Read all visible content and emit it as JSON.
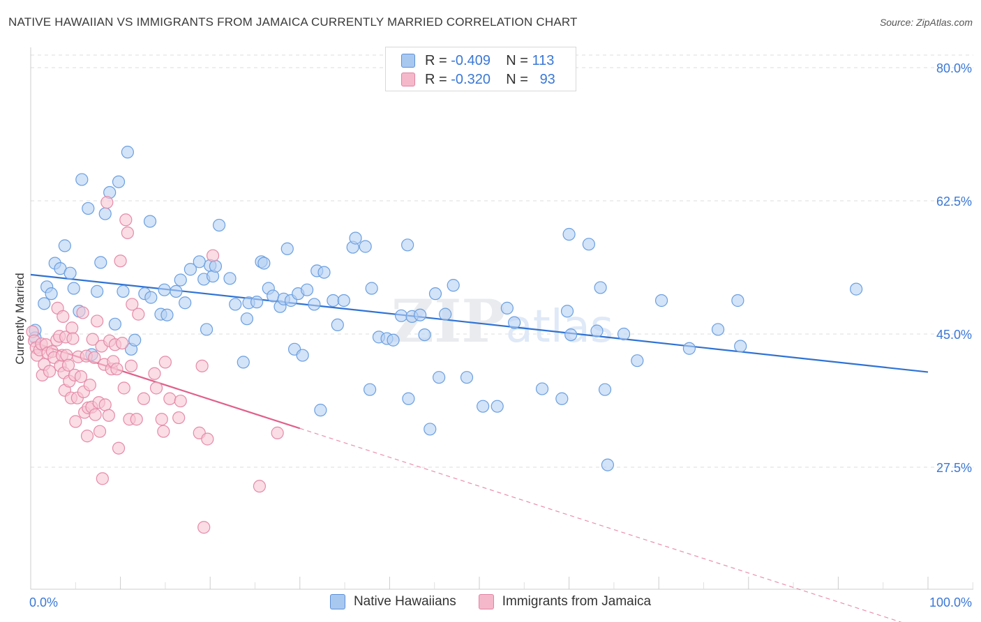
{
  "title": "NATIVE HAWAIIAN VS IMMIGRANTS FROM JAMAICA CURRENTLY MARRIED CORRELATION CHART",
  "source": "Source: ZipAtlas.com",
  "watermark": "ZIPatlas",
  "legend_top": {
    "rows": [
      {
        "r_label": "R =",
        "r_value": "-0.409",
        "n_label": "N =",
        "n_value": "113",
        "color": "#a9c8f0"
      },
      {
        "r_label": "R =",
        "r_value": "-0.320",
        "n_label": "N =",
        "n_value": "93",
        "color": "#f5b8cb"
      }
    ]
  },
  "bottom_legend": [
    {
      "label": "Native Hawaiians",
      "color": "#a9c8f0"
    },
    {
      "label": "Immigrants from Jamaica",
      "color": "#f5b8cb"
    }
  ],
  "chart_data": {
    "type": "scatter",
    "title": "NATIVE HAWAIIAN VS IMMIGRANTS FROM JAMAICA CURRENTLY MARRIED CORRELATION CHART",
    "ylabel": "Currently Married",
    "xlabel": "",
    "x_tick_labels": [
      "0.0%",
      "100.0%"
    ],
    "y_tick_labels": [
      "80.0%",
      "62.5%",
      "45.0%",
      "27.5%"
    ],
    "y_ticks": [
      80.0,
      62.5,
      45.0,
      27.5
    ],
    "xlim": [
      0,
      100
    ],
    "ylim": [
      12,
      82
    ],
    "grid": "horizontal dashed",
    "series": [
      {
        "name": "Native Hawaiians",
        "color": "#6a9fe0",
        "fill": "#b5d0f3",
        "trend": {
          "x": [
            0,
            100
          ],
          "y": [
            52.8,
            40.0
          ],
          "color": "#2f72d3"
        },
        "points": [
          [
            0.5,
            45.5
          ],
          [
            0.5,
            44.5
          ],
          [
            1.5,
            49
          ],
          [
            1.8,
            51.2
          ],
          [
            2.3,
            50.3
          ],
          [
            2.7,
            54.3
          ],
          [
            3.3,
            53.6
          ],
          [
            3.8,
            56.6
          ],
          [
            4.4,
            53
          ],
          [
            4.8,
            51
          ],
          [
            5.4,
            48
          ],
          [
            5.7,
            65.3
          ],
          [
            6.4,
            61.5
          ],
          [
            6.8,
            42.3
          ],
          [
            7.4,
            50.6
          ],
          [
            7.8,
            54.4
          ],
          [
            8.3,
            60.8
          ],
          [
            8.8,
            63.6
          ],
          [
            9.4,
            46.3
          ],
          [
            9.8,
            65
          ],
          [
            10.3,
            50.6
          ],
          [
            10.8,
            68.9
          ],
          [
            11.2,
            43
          ],
          [
            11.6,
            44.2
          ],
          [
            12.7,
            50.3
          ],
          [
            13.4,
            49.8
          ],
          [
            13.3,
            59.8
          ],
          [
            14.5,
            47.6
          ],
          [
            14.9,
            50.8
          ],
          [
            15.2,
            47.5
          ],
          [
            16.2,
            50.6
          ],
          [
            16.7,
            52.1
          ],
          [
            17.2,
            49.1
          ],
          [
            17.8,
            53.5
          ],
          [
            18.8,
            54.5
          ],
          [
            19.3,
            52.2
          ],
          [
            19.6,
            45.6
          ],
          [
            20.0,
            54.0
          ],
          [
            20.3,
            52.6
          ],
          [
            20.6,
            53.9
          ],
          [
            21.0,
            59.3
          ],
          [
            22.8,
            48.9
          ],
          [
            22.2,
            52.3
          ],
          [
            23.7,
            41.3
          ],
          [
            24.1,
            47.0
          ],
          [
            24.3,
            49.1
          ],
          [
            25.2,
            49.2
          ],
          [
            25.7,
            54.5
          ],
          [
            26.0,
            54.3
          ],
          [
            26.5,
            51.0
          ],
          [
            27.0,
            50.0
          ],
          [
            27.8,
            48.6
          ],
          [
            28.2,
            49.6
          ],
          [
            28.6,
            56.2
          ],
          [
            29.0,
            49.4
          ],
          [
            29.4,
            43.0
          ],
          [
            29.8,
            50.3
          ],
          [
            30.3,
            42.2
          ],
          [
            30.8,
            50.8
          ],
          [
            31.6,
            48.9
          ],
          [
            31.9,
            53.3
          ],
          [
            32.3,
            35.0
          ],
          [
            32.7,
            53.1
          ],
          [
            33.7,
            49.4
          ],
          [
            34.2,
            46.2
          ],
          [
            34.9,
            49.4
          ],
          [
            35.9,
            56.4
          ],
          [
            36.2,
            57.6
          ],
          [
            37.3,
            56.5
          ],
          [
            37.8,
            37.7
          ],
          [
            38.0,
            51.0
          ],
          [
            38.8,
            44.6
          ],
          [
            39.7,
            44.4
          ],
          [
            40.4,
            44.2
          ],
          [
            41.3,
            47.4
          ],
          [
            42.0,
            56.7
          ],
          [
            42.5,
            47.3
          ],
          [
            42.1,
            36.5
          ],
          [
            43.4,
            47.5
          ],
          [
            43.9,
            44.9
          ],
          [
            44.5,
            32.5
          ],
          [
            45.1,
            50.3
          ],
          [
            45.5,
            39.3
          ],
          [
            46.2,
            47.6
          ],
          [
            47.1,
            51.4
          ],
          [
            48.6,
            39.3
          ],
          [
            50.4,
            35.5
          ],
          [
            52.0,
            35.5
          ],
          [
            53.1,
            48.4
          ],
          [
            53.9,
            46.5
          ],
          [
            57.0,
            37.8
          ],
          [
            59.2,
            36.5
          ],
          [
            59.8,
            48.0
          ],
          [
            60.0,
            58.1
          ],
          [
            60.2,
            44.9
          ],
          [
            62.2,
            56.8
          ],
          [
            63.1,
            45.4
          ],
          [
            63.5,
            51.1
          ],
          [
            64.0,
            37.7
          ],
          [
            64.3,
            27.8
          ],
          [
            66.1,
            45.0
          ],
          [
            67.6,
            41.5
          ],
          [
            70.3,
            49.4
          ],
          [
            73.4,
            43.1
          ],
          [
            76.6,
            45.6
          ],
          [
            78.8,
            49.4
          ],
          [
            79.1,
            43.4
          ],
          [
            92.0,
            50.9
          ]
        ]
      },
      {
        "name": "Immigrants from Jamaica",
        "color": "#e58aa8",
        "fill": "#f7c6d4",
        "trend": {
          "x": [
            0,
            30
          ],
          "y": [
            44.0,
            32.6
          ],
          "color": "#e0608b"
        },
        "trend_dashed": {
          "x": [
            30,
            100
          ],
          "y": [
            32.6,
            6.0
          ]
        },
        "points": [
          [
            0.2,
            45.3
          ],
          [
            0.4,
            44.1
          ],
          [
            0.6,
            43.2
          ],
          [
            0.7,
            42.2
          ],
          [
            1.0,
            42.9
          ],
          [
            1.2,
            43.7
          ],
          [
            1.3,
            39.6
          ],
          [
            1.5,
            41.0
          ],
          [
            1.7,
            43.6
          ],
          [
            1.9,
            42.5
          ],
          [
            2.1,
            40.1
          ],
          [
            2.4,
            42.7
          ],
          [
            2.6,
            41.9
          ],
          [
            2.9,
            44.2
          ],
          [
            3.0,
            48.4
          ],
          [
            3.2,
            44.7
          ],
          [
            3.3,
            40.8
          ],
          [
            3.5,
            42.2
          ],
          [
            3.6,
            47.3
          ],
          [
            3.7,
            39.9
          ],
          [
            3.8,
            37.6
          ],
          [
            3.9,
            44.6
          ],
          [
            4.0,
            42.2
          ],
          [
            4.2,
            40.9
          ],
          [
            4.3,
            38.8
          ],
          [
            4.5,
            36.6
          ],
          [
            4.6,
            45.8
          ],
          [
            4.7,
            44.4
          ],
          [
            4.9,
            39.6
          ],
          [
            5.0,
            33.5
          ],
          [
            5.2,
            36.6
          ],
          [
            5.3,
            42.0
          ],
          [
            5.6,
            39.4
          ],
          [
            5.8,
            47.8
          ],
          [
            5.9,
            37.4
          ],
          [
            6.0,
            34.7
          ],
          [
            6.2,
            42.1
          ],
          [
            6.3,
            31.6
          ],
          [
            6.4,
            35.3
          ],
          [
            6.6,
            38.3
          ],
          [
            6.8,
            35.4
          ],
          [
            6.9,
            44.3
          ],
          [
            7.1,
            41.9
          ],
          [
            7.2,
            34.4
          ],
          [
            7.4,
            46.7
          ],
          [
            7.6,
            36.0
          ],
          [
            7.7,
            32.2
          ],
          [
            7.9,
            43.4
          ],
          [
            8.0,
            26.0
          ],
          [
            8.2,
            41.0
          ],
          [
            8.3,
            35.7
          ],
          [
            8.5,
            62.3
          ],
          [
            8.7,
            34.3
          ],
          [
            8.8,
            44.1
          ],
          [
            9.0,
            40.4
          ],
          [
            9.2,
            41.4
          ],
          [
            9.4,
            43.6
          ],
          [
            9.6,
            40.4
          ],
          [
            9.8,
            30.0
          ],
          [
            10.0,
            54.6
          ],
          [
            10.2,
            43.8
          ],
          [
            10.4,
            37.9
          ],
          [
            10.6,
            60.0
          ],
          [
            10.8,
            58.3
          ],
          [
            11.0,
            33.8
          ],
          [
            11.2,
            40.8
          ],
          [
            11.3,
            48.9
          ],
          [
            11.8,
            33.8
          ],
          [
            12.0,
            47.6
          ],
          [
            12.6,
            36.5
          ],
          [
            13.8,
            39.8
          ],
          [
            14.0,
            37.9
          ],
          [
            14.6,
            33.8
          ],
          [
            14.8,
            32.2
          ],
          [
            15.0,
            41.3
          ],
          [
            15.5,
            36.5
          ],
          [
            16.5,
            34.0
          ],
          [
            16.7,
            36.2
          ],
          [
            18.8,
            32.0
          ],
          [
            19.1,
            40.8
          ],
          [
            19.3,
            19.6
          ],
          [
            19.7,
            31.2
          ],
          [
            20.3,
            55.3
          ],
          [
            25.5,
            25.0
          ],
          [
            27.5,
            32.0
          ]
        ]
      }
    ]
  }
}
